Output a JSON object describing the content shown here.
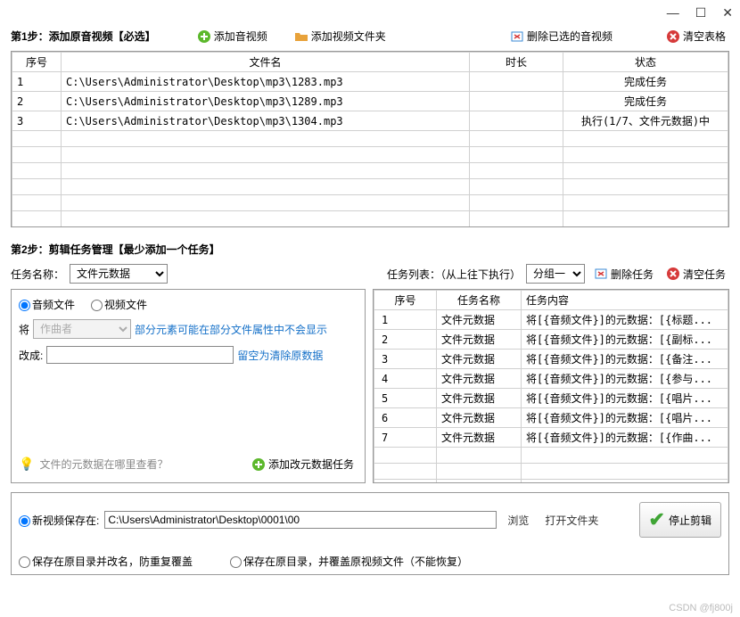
{
  "titlebar": {
    "min": "—",
    "max": "☐",
    "close": "✕"
  },
  "step1": {
    "label": "第1步：添加原音视频【必选】",
    "buttons": {
      "add_av": "添加音视频",
      "add_folder": "添加视频文件夹",
      "delete_selected": "删除已选的音视频",
      "clear": "清空表格"
    },
    "cols": {
      "no": "序号",
      "filename": "文件名",
      "duration": "时长",
      "status": "状态"
    },
    "rows": [
      {
        "no": "1",
        "file": "C:\\Users\\Administrator\\Desktop\\mp3\\1283.mp3",
        "dur": "",
        "status": "完成任务"
      },
      {
        "no": "2",
        "file": "C:\\Users\\Administrator\\Desktop\\mp3\\1289.mp3",
        "dur": "",
        "status": "完成任务"
      },
      {
        "no": "3",
        "file": "C:\\Users\\Administrator\\Desktop\\mp3\\1304.mp3",
        "dur": "",
        "status": "执行(1/7、文件元数据)中"
      }
    ]
  },
  "step2": {
    "label": "第2步：剪辑任务管理【最少添加一个任务】",
    "task_name_label": "任务名称：",
    "task_name_value": "文件元数据",
    "task_list_label": "任务列表：（从上往下执行）",
    "group_value": "分组一",
    "delete_task": "删除任务",
    "clear_task": "清空任务",
    "radio_audio": "音频文件",
    "radio_video": "视频文件",
    "field_label": "将",
    "field_value": "作曲者",
    "field_hint": "部分元素可能在部分文件属性中不会显示",
    "change_label": "改成:",
    "change_hint": "留空为清除原数据",
    "help_text": "文件的元数据在哪里查看？",
    "add_task_btn": "添加改元数据任务",
    "cols": {
      "no": "序号",
      "name": "任务名称",
      "content": "任务内容"
    },
    "rows": [
      {
        "no": "1",
        "name": "文件元数据",
        "content": "将[{音频文件}]的元数据：[{标题..."
      },
      {
        "no": "2",
        "name": "文件元数据",
        "content": "将[{音频文件}]的元数据：[{副标..."
      },
      {
        "no": "3",
        "name": "文件元数据",
        "content": "将[{音频文件}]的元数据：[{备注..."
      },
      {
        "no": "4",
        "name": "文件元数据",
        "content": "将[{音频文件}]的元数据：[{参与..."
      },
      {
        "no": "5",
        "name": "文件元数据",
        "content": "将[{音频文件}]的元数据：[{唱片..."
      },
      {
        "no": "6",
        "name": "文件元数据",
        "content": "将[{音频文件}]的元数据：[{唱片..."
      },
      {
        "no": "7",
        "name": "文件元数据",
        "content": "将[{音频文件}]的元数据：[{作曲..."
      }
    ]
  },
  "output": {
    "save_to_label": "新视频保存在:",
    "save_path": "C:\\Users\\Administrator\\Desktop\\0001\\00",
    "browse": "浏览",
    "open_folder": "打开文件夹",
    "stop": "停止剪辑",
    "opt2": "保存在原目录并改名，防重复覆盖",
    "opt3": "保存在原目录，并覆盖原视频文件（不能恢复）"
  },
  "watermark": "CSDN @fj800j",
  "colors": {
    "add_green": "#5cb82c",
    "folder_orange": "#e8a23a",
    "delete_blue": "#3a8ad6",
    "clear_red": "#d63a3a"
  }
}
